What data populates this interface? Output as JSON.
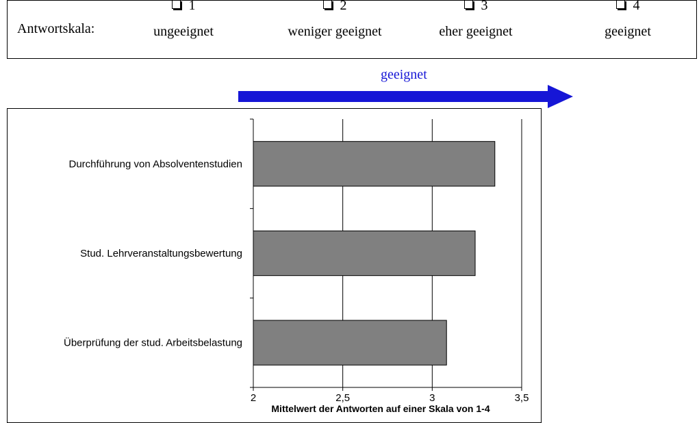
{
  "scale": {
    "label": "Antwortskala:",
    "options": [
      {
        "num": "1",
        "text": "ungeeignet"
      },
      {
        "num": "2",
        "text": "weniger geeignet"
      },
      {
        "num": "3",
        "text": "eher geeignet"
      },
      {
        "num": "4",
        "text": "geeignet"
      }
    ]
  },
  "arrow": {
    "label": "geeignet",
    "color": "#1616d6"
  },
  "chart_data": {
    "type": "bar",
    "orientation": "horizontal",
    "categories": [
      "Durchführung von Absolventenstudien",
      "Stud. Lehrveranstaltungsbewertung",
      "Überprüfung der stud. Arbeitsbelastung"
    ],
    "values": [
      3.35,
      3.24,
      3.08
    ],
    "xlim": [
      2,
      3.5
    ],
    "xticks": [
      "2",
      "2,5",
      "3",
      "3,5"
    ],
    "xlabel": "Mittelwert der Antworten auf einer Skala von 1-4",
    "grid": true,
    "bar_color": "#808080"
  }
}
